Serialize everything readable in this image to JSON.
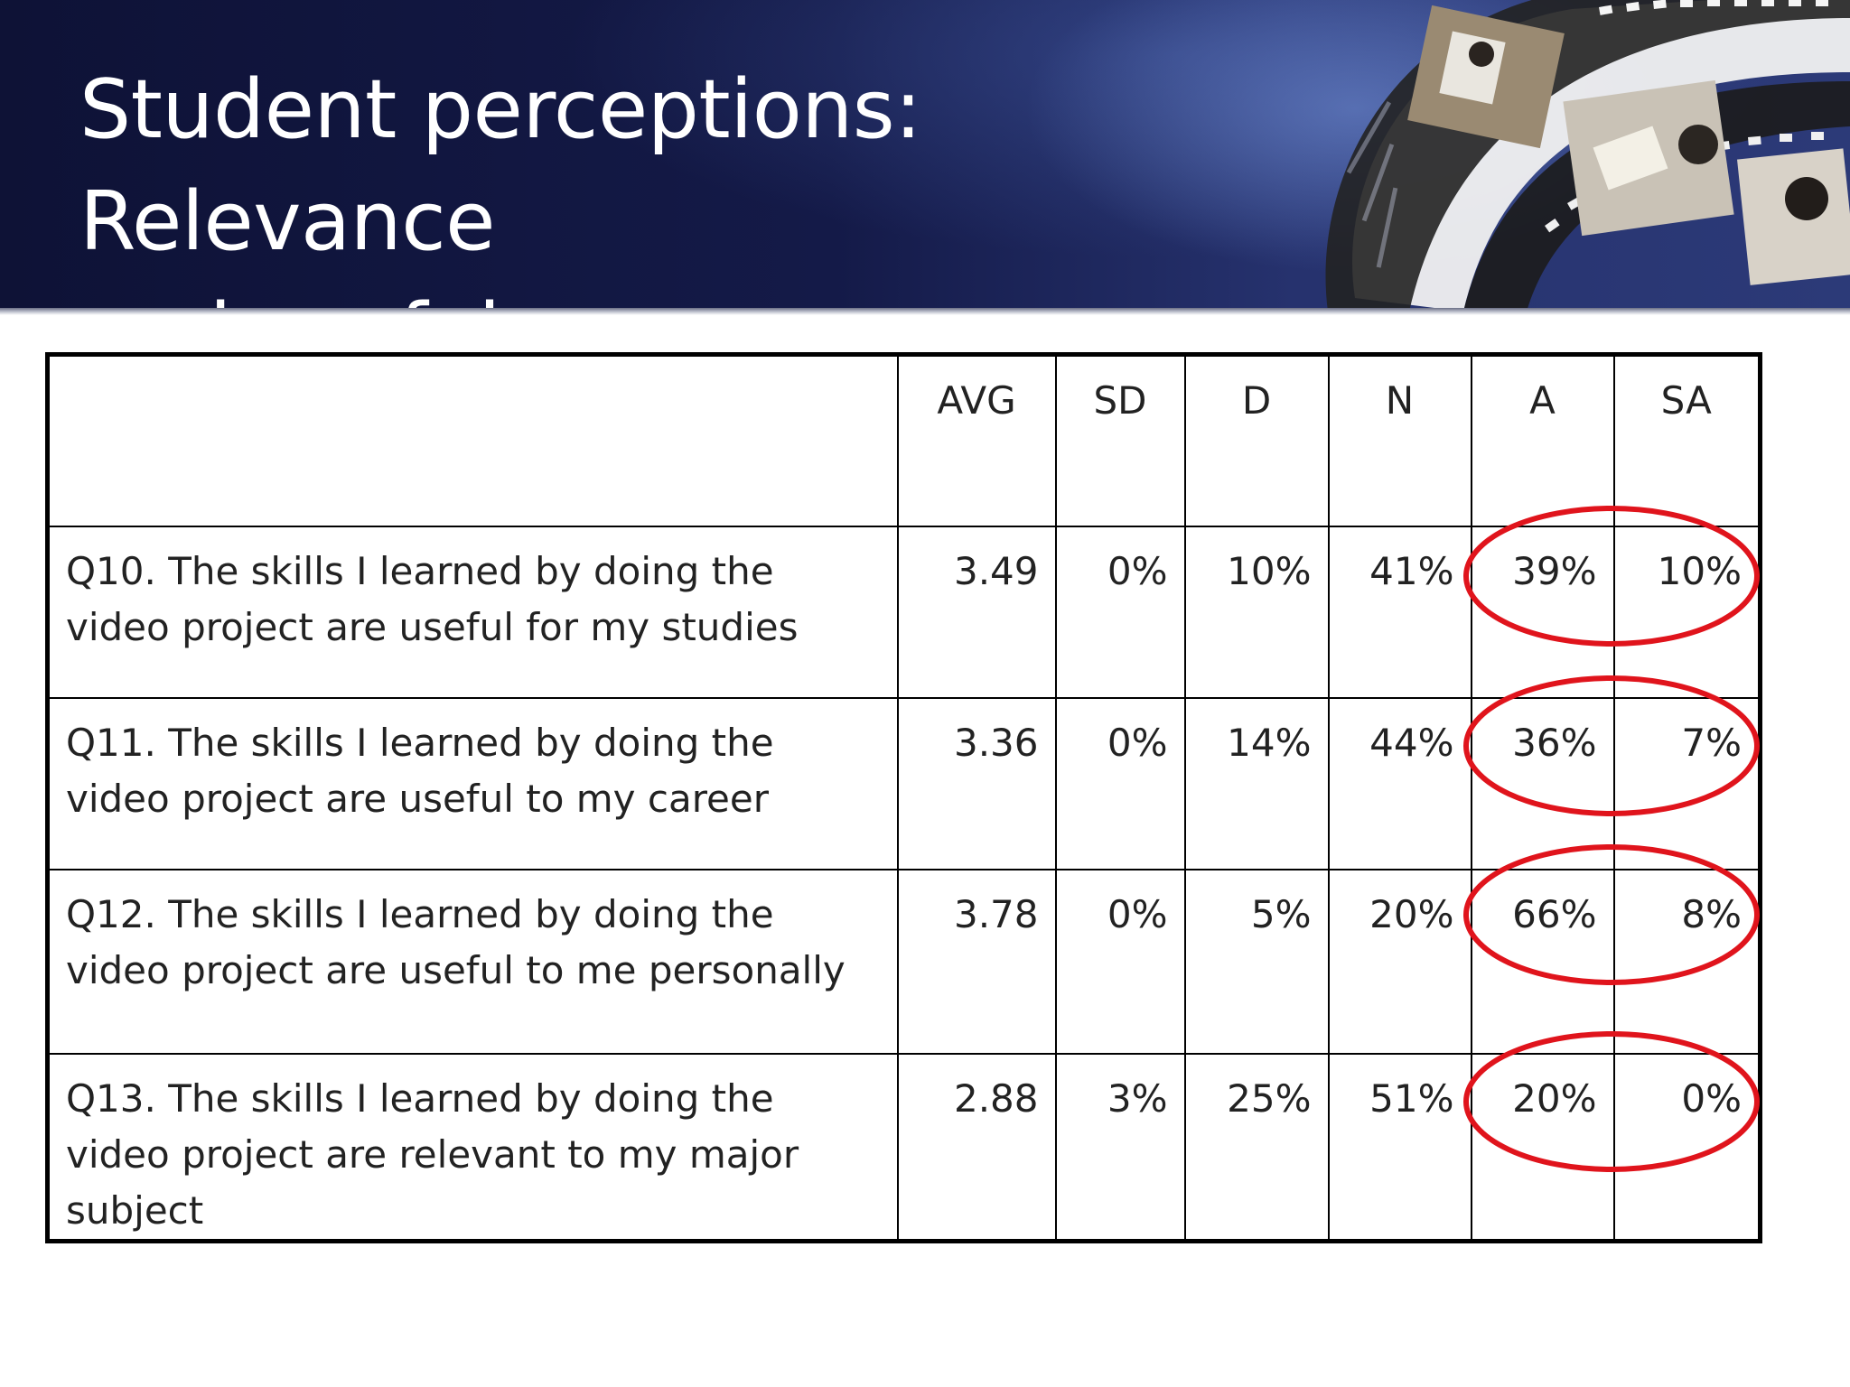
{
  "slide": {
    "title": "Student perceptions: Relevance and usefulness",
    "title_line1": "Student perceptions: Relevance",
    "title_line2": "and usefulness"
  },
  "colors": {
    "header_dark": "#0e1236",
    "header_light": "#2c3a78",
    "highlight_circle": "#e0141c"
  },
  "table": {
    "headers": [
      "",
      "AVG",
      "SD",
      "D",
      "N",
      "A",
      "SA"
    ],
    "rows": [
      {
        "question": "Q10. The skills I learned by doing the video project are useful for my studies",
        "avg": "3.49",
        "sd": "0%",
        "d": "10%",
        "n": "41%",
        "a": "39%",
        "sa": "10%"
      },
      {
        "question": "Q11. The skills I learned by doing the video project are useful to my career",
        "avg": "3.36",
        "sd": "0%",
        "d": "14%",
        "n": "44%",
        "a": "36%",
        "sa": "7%"
      },
      {
        "question": "Q12. The skills I learned by doing the video project are useful to me personally",
        "avg": "3.78",
        "sd": "0%",
        "d": "5%",
        "n": "20%",
        "a": "66%",
        "sa": "8%"
      },
      {
        "question": "Q13. The skills I learned by doing the video project are relevant to my major subject",
        "avg": "2.88",
        "sd": "3%",
        "d": "25%",
        "n": "51%",
        "a": "20%",
        "sa": "0%"
      }
    ],
    "highlighted_columns": [
      "A",
      "SA"
    ]
  },
  "decorations": {
    "header_image": "filmstrip-photo-collage"
  }
}
